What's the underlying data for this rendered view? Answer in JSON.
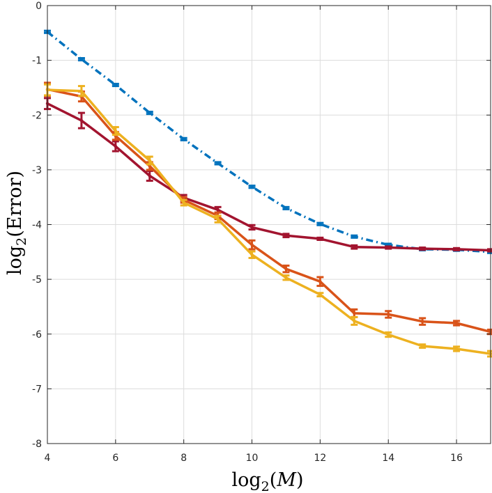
{
  "chart_data": {
    "type": "line",
    "title": "",
    "xlabel": {
      "main": "log",
      "sub": "2",
      "open": "(",
      "var": "M",
      "close": ")"
    },
    "ylabel": {
      "main": "log",
      "sub": "2",
      "open": "(",
      "var": "Error",
      "close": ")"
    },
    "xlim": [
      4,
      17
    ],
    "ylim": [
      -8,
      0
    ],
    "xticks": [
      4,
      6,
      8,
      10,
      12,
      14,
      16
    ],
    "yticks": [
      0,
      -1,
      -2,
      -3,
      -4,
      -5,
      -6,
      -7,
      -8
    ],
    "xtick_labels": [
      "4",
      "6",
      "8",
      "10",
      "12",
      "14",
      "16"
    ],
    "ytick_labels": [
      "0",
      "-1",
      "-2",
      "-3",
      "-4",
      "-5",
      "-6",
      "-7",
      "-8"
    ],
    "grid": true,
    "x": [
      4,
      5,
      6,
      7,
      8,
      9,
      10,
      11,
      12,
      13,
      14,
      15,
      16,
      17
    ],
    "series": [
      {
        "name": "blue dash-dot",
        "color": "#0072BD",
        "style": "dashdot",
        "values": [
          -0.48,
          -0.98,
          -1.45,
          -1.96,
          -2.44,
          -2.88,
          -3.31,
          -3.7,
          -3.99,
          -4.22,
          -4.37,
          -4.45,
          -4.46,
          -4.5
        ],
        "errors": [
          0.02,
          0.02,
          0.02,
          0.02,
          0.02,
          0.02,
          0.02,
          0.02,
          0.02,
          0.02,
          0.02,
          0.02,
          0.02,
          0.02
        ]
      },
      {
        "name": "dark red",
        "color": "#A2142F",
        "style": "solid",
        "values": [
          -1.79,
          -2.1,
          -2.57,
          -3.11,
          -3.51,
          -3.73,
          -4.05,
          -4.2,
          -4.26,
          -4.41,
          -4.42,
          -4.44,
          -4.45,
          -4.47
        ],
        "errors": [
          0.1,
          0.14,
          0.09,
          0.09,
          0.05,
          0.05,
          0.04,
          0.03,
          0.02,
          0.03,
          0.02,
          0.02,
          0.02,
          0.02
        ]
      },
      {
        "name": "orange",
        "color": "#D95319",
        "style": "solid",
        "values": [
          -1.53,
          -1.66,
          -2.38,
          -2.93,
          -3.55,
          -3.84,
          -4.37,
          -4.81,
          -5.04,
          -5.62,
          -5.64,
          -5.77,
          -5.8,
          -5.96
        ],
        "errors": [
          0.12,
          0.09,
          0.07,
          0.07,
          0.05,
          0.06,
          0.08,
          0.06,
          0.08,
          0.07,
          0.06,
          0.06,
          0.04,
          0.04
        ]
      },
      {
        "name": "yellow",
        "color": "#EDB120",
        "style": "solid",
        "values": [
          -1.54,
          -1.56,
          -2.29,
          -2.83,
          -3.6,
          -3.9,
          -4.55,
          -4.97,
          -5.28,
          -5.76,
          -6.01,
          -6.22,
          -6.27,
          -6.36
        ],
        "errors": [
          0.1,
          0.09,
          0.07,
          0.07,
          0.05,
          0.06,
          0.06,
          0.04,
          0.03,
          0.07,
          0.04,
          0.03,
          0.04,
          0.05
        ]
      }
    ]
  }
}
